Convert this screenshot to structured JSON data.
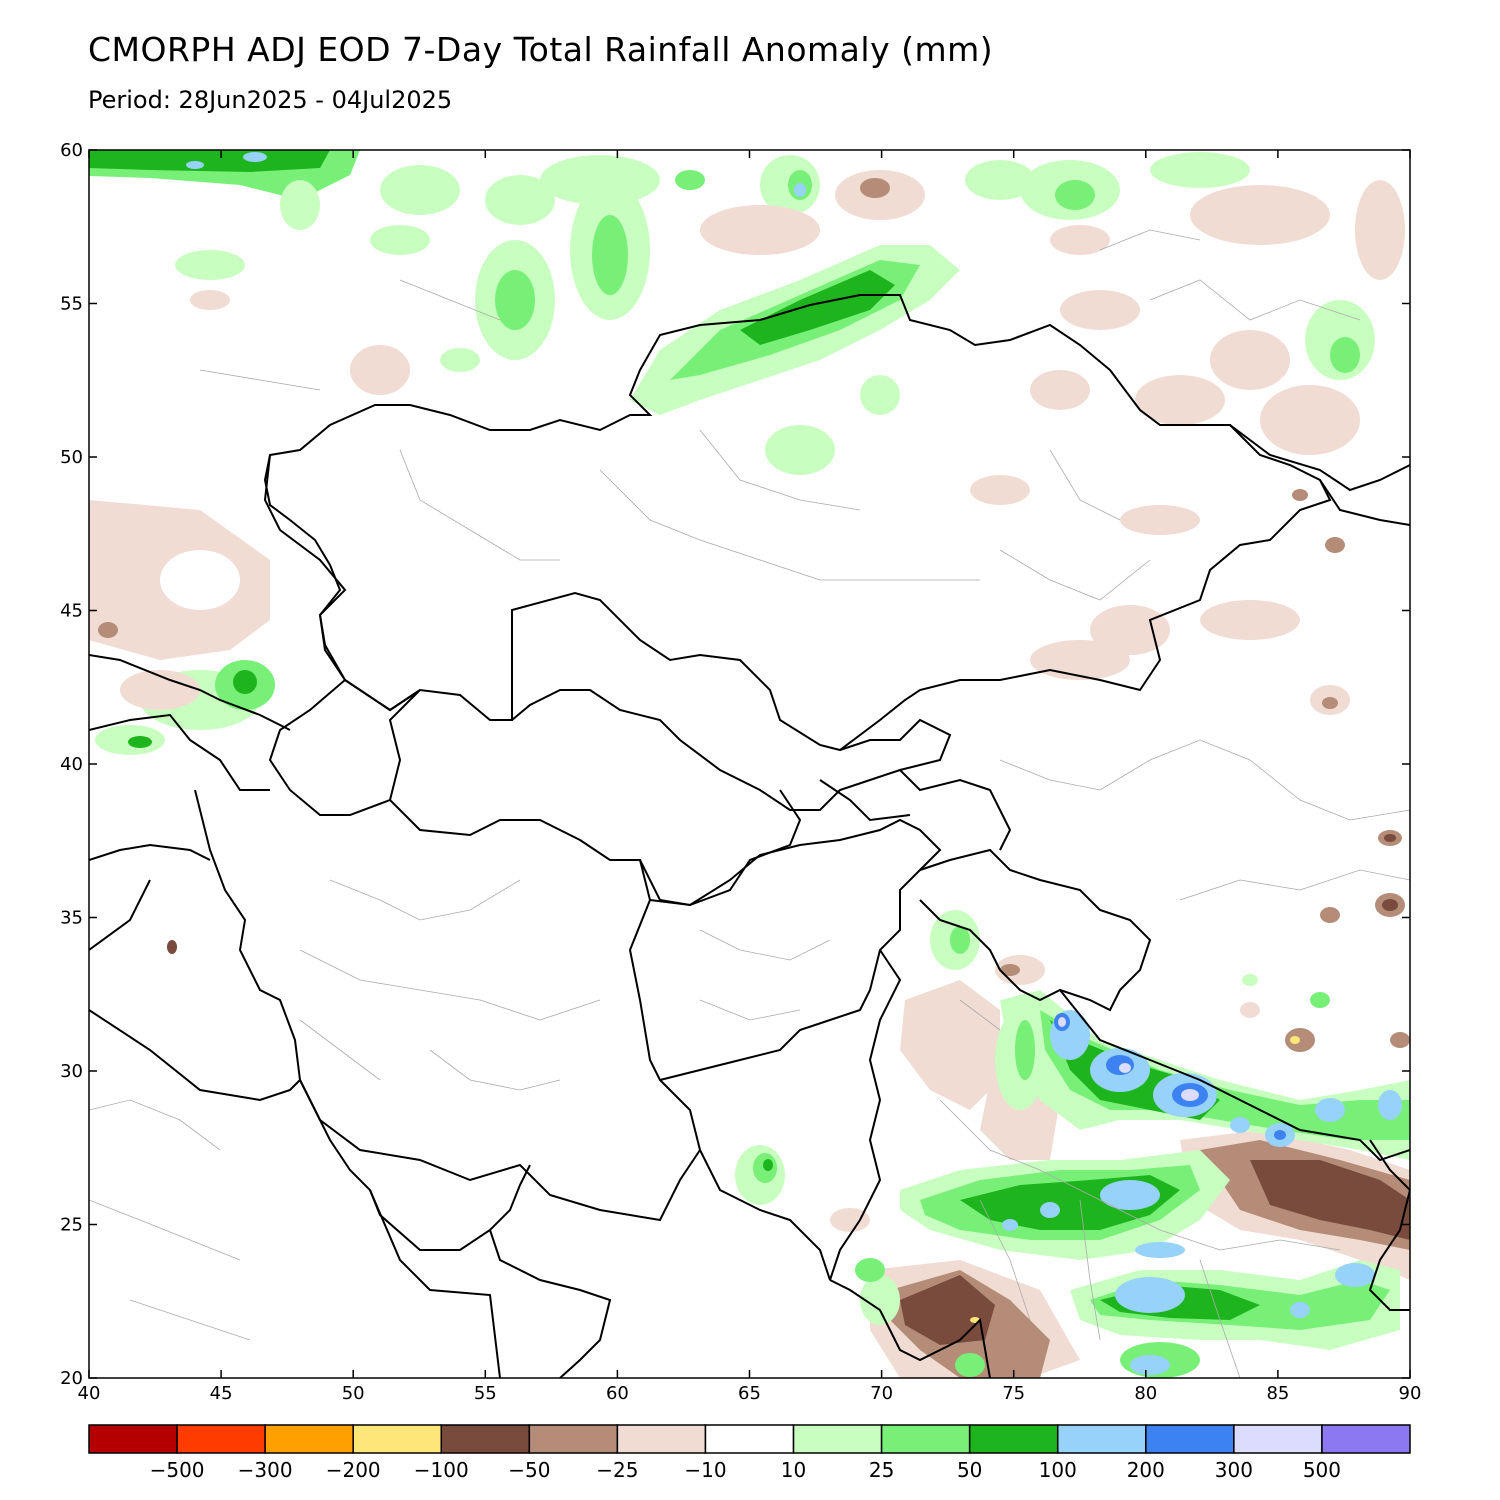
{
  "title": "CMORPH ADJ EOD 7-Day Total Rainfall Anomaly (mm)",
  "subtitle": "Period: 28Jun2025 - 04Jul2025",
  "map": {
    "lon_range": [
      40,
      90
    ],
    "lat_range": [
      20,
      60
    ],
    "lon_ticks": [
      "40",
      "45",
      "50",
      "55",
      "60",
      "65",
      "70",
      "75",
      "80",
      "85",
      "90"
    ],
    "lat_ticks": [
      "60",
      "55",
      "50",
      "45",
      "40",
      "35",
      "30",
      "25",
      "20"
    ]
  },
  "colorbar": {
    "colors": [
      "#b40000",
      "#ff3c00",
      "#ffa000",
      "#ffe678",
      "#784b3c",
      "#b48c78",
      "#f0dcd2",
      "#ffffff",
      "#c8ffc0",
      "#78f078",
      "#1eb41e",
      "#96d2fa",
      "#3c82f0",
      "#dcdcff",
      "#8c78f0"
    ],
    "labels": [
      "-500",
      "-300",
      "-200",
      "-100",
      "-50",
      "-25",
      "-10",
      "10",
      "25",
      "50",
      "100",
      "200",
      "300",
      "500"
    ]
  },
  "anomaly_colors": {
    "dark_brown": "#784b3c",
    "brown": "#b48c78",
    "light_brown": "#f0dcd2",
    "light_green": "#c8ffc0",
    "green": "#78f078",
    "dark_green": "#1eb41e",
    "light_blue": "#96d2fa",
    "blue": "#3c82f0",
    "lavender": "#dcdcff",
    "yellow": "#ffe678"
  }
}
